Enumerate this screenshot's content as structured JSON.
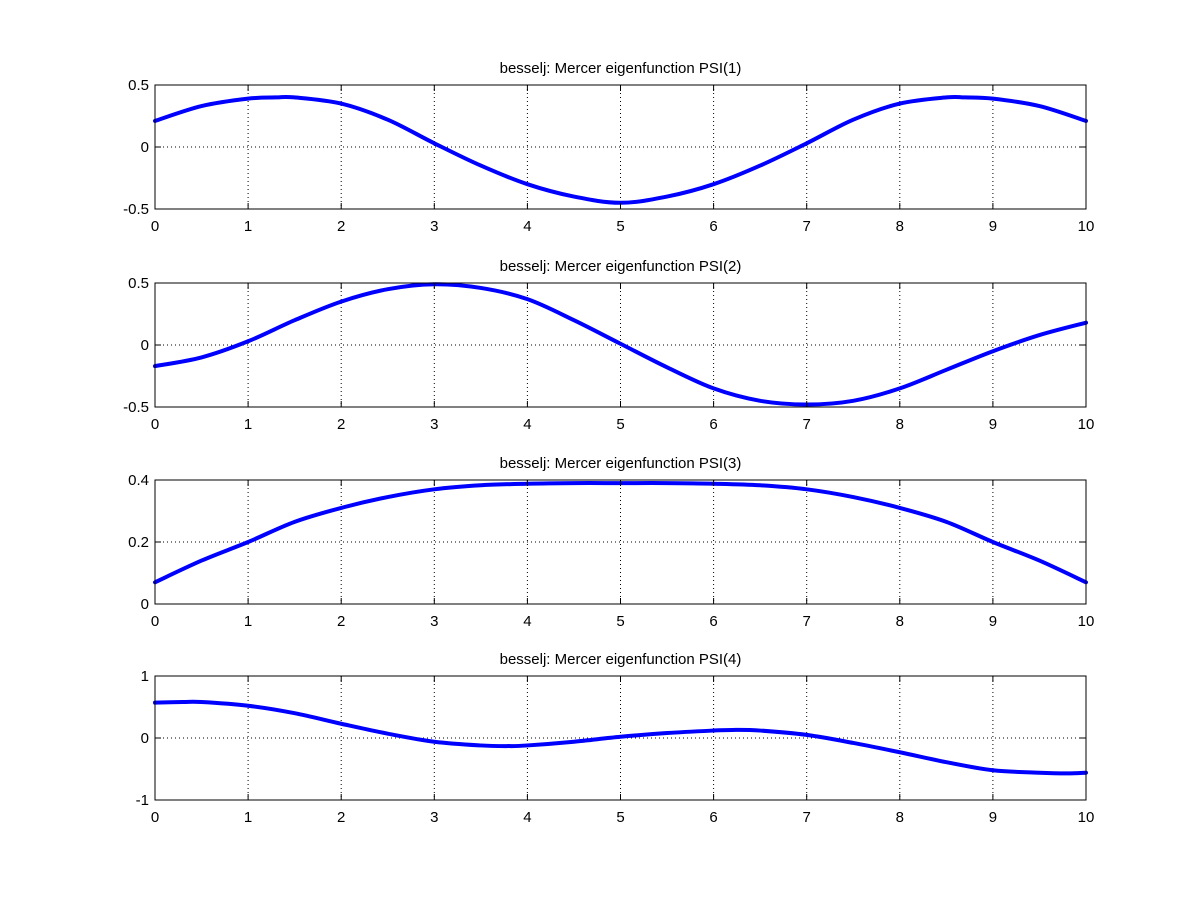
{
  "figure": {
    "background": "#ffffff"
  },
  "chart_data": [
    {
      "type": "line",
      "title": "besselj: Mercer eigenfunction PSI(1)",
      "xlabel": "",
      "ylabel": "",
      "xlim": [
        0,
        10
      ],
      "ylim": [
        -0.5,
        0.5
      ],
      "xticks": [
        0,
        1,
        2,
        3,
        4,
        5,
        6,
        7,
        8,
        9,
        10
      ],
      "yticks": [
        -0.5,
        0,
        0.5
      ],
      "grid": true,
      "series": [
        {
          "color": "#0000ff",
          "x": [
            0,
            0.5,
            1,
            1.3,
            1.5,
            2,
            2.5,
            3,
            3.5,
            4,
            4.5,
            5,
            5.5,
            6,
            6.5,
            7,
            7.5,
            8,
            8.5,
            8.7,
            9,
            9.5,
            10
          ],
          "y": [
            0.21,
            0.33,
            0.39,
            0.4,
            0.4,
            0.35,
            0.22,
            0.03,
            -0.15,
            -0.3,
            -0.4,
            -0.45,
            -0.4,
            -0.3,
            -0.15,
            0.03,
            0.22,
            0.35,
            0.4,
            0.4,
            0.39,
            0.33,
            0.21
          ]
        }
      ]
    },
    {
      "type": "line",
      "title": "besselj: Mercer eigenfunction PSI(2)",
      "xlabel": "",
      "ylabel": "",
      "xlim": [
        0,
        10
      ],
      "ylim": [
        -0.5,
        0.5
      ],
      "xticks": [
        0,
        1,
        2,
        3,
        4,
        5,
        6,
        7,
        8,
        9,
        10
      ],
      "yticks": [
        -0.5,
        0,
        0.5
      ],
      "grid": true,
      "series": [
        {
          "color": "#0000ff",
          "x": [
            0,
            0.5,
            1,
            1.5,
            2,
            2.5,
            3,
            3.5,
            4,
            4.5,
            5,
            5.5,
            6,
            6.5,
            7,
            7.5,
            8,
            8.5,
            9,
            9.5,
            10
          ],
          "y": [
            -0.17,
            -0.1,
            0.03,
            0.2,
            0.35,
            0.45,
            0.49,
            0.46,
            0.37,
            0.2,
            0.01,
            -0.18,
            -0.35,
            -0.45,
            -0.48,
            -0.45,
            -0.35,
            -0.2,
            -0.05,
            0.08,
            0.18
          ]
        }
      ]
    },
    {
      "type": "line",
      "title": "besselj: Mercer eigenfunction PSI(3)",
      "xlabel": "",
      "ylabel": "",
      "xlim": [
        0,
        10
      ],
      "ylim": [
        0,
        0.4
      ],
      "xticks": [
        0,
        1,
        2,
        3,
        4,
        5,
        6,
        7,
        8,
        9,
        10
      ],
      "yticks": [
        0,
        0.2,
        0.4
      ],
      "grid": true,
      "series": [
        {
          "color": "#0000ff",
          "x": [
            0,
            0.5,
            1,
            1.5,
            2,
            2.5,
            3,
            3.5,
            4,
            4.5,
            5,
            5.5,
            6,
            6.5,
            7,
            7.5,
            8,
            8.5,
            9,
            9.5,
            10
          ],
          "y": [
            0.07,
            0.14,
            0.2,
            0.265,
            0.31,
            0.345,
            0.37,
            0.383,
            0.388,
            0.39,
            0.39,
            0.39,
            0.388,
            0.383,
            0.37,
            0.345,
            0.31,
            0.265,
            0.2,
            0.14,
            0.07
          ]
        }
      ]
    },
    {
      "type": "line",
      "title": "besselj: Mercer eigenfunction PSI(4)",
      "xlabel": "",
      "ylabel": "",
      "xlim": [
        0,
        10
      ],
      "ylim": [
        -1,
        1
      ],
      "xticks": [
        0,
        1,
        2,
        3,
        4,
        5,
        6,
        7,
        8,
        9,
        10
      ],
      "yticks": [
        -1,
        0,
        1
      ],
      "grid": true,
      "series": [
        {
          "color": "#0000ff",
          "x": [
            0,
            0.3,
            0.5,
            1,
            1.5,
            2,
            2.5,
            3,
            3.5,
            3.8,
            4,
            4.5,
            5,
            5.5,
            6,
            6.2,
            6.5,
            7,
            7.5,
            8,
            8.5,
            9,
            9.5,
            9.8,
            10
          ],
          "y": [
            0.57,
            0.58,
            0.58,
            0.52,
            0.4,
            0.23,
            0.07,
            -0.06,
            -0.12,
            -0.13,
            -0.12,
            -0.06,
            0.02,
            0.08,
            0.12,
            0.13,
            0.12,
            0.05,
            -0.08,
            -0.23,
            -0.39,
            -0.52,
            -0.56,
            -0.57,
            -0.56
          ]
        }
      ]
    }
  ]
}
